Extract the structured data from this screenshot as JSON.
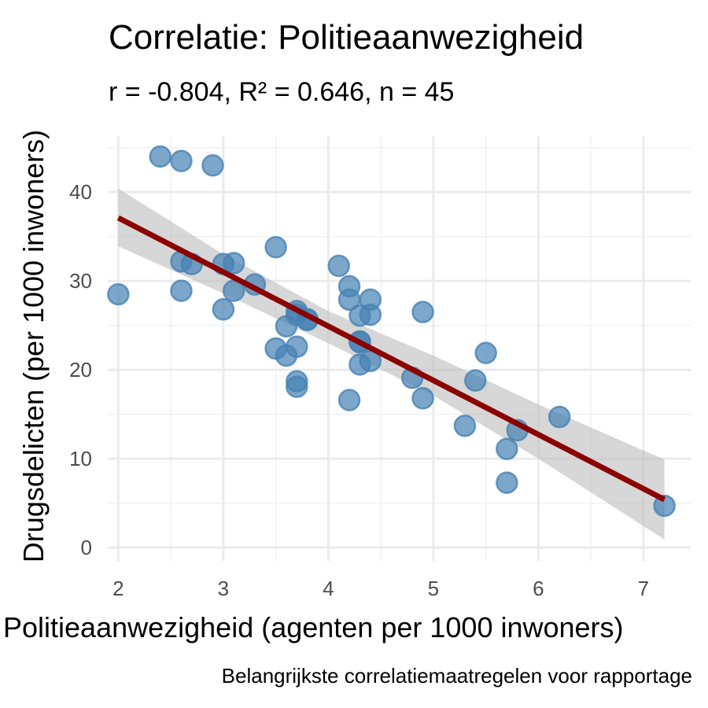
{
  "chart_data": {
    "type": "scatter",
    "title": "Correlatie: Politieaanwezigheid",
    "subtitle": "r = -0.804, R² = 0.646, n = 45",
    "xlabel": "Politieaanwezigheid (agenten per 1000 inwoners)",
    "ylabel": "Drugsdelicten (per 1000 inwoners)",
    "caption": "Belangrijkste correlatiemaatregelen voor rapportage",
    "xlim": [
      1.9,
      7.45
    ],
    "ylim": [
      -1.5,
      46.3
    ],
    "xticks": [
      2,
      3,
      4,
      5,
      6,
      7
    ],
    "yticks": [
      0,
      10,
      20,
      30,
      40
    ],
    "grid": true,
    "point_color": "#4682B4",
    "line_color": "#8B0000",
    "ribbon_color": "#bdbdbd",
    "points": [
      {
        "x": 2.0,
        "y": 28.5
      },
      {
        "x": 2.4,
        "y": 44.0
      },
      {
        "x": 2.6,
        "y": 43.5
      },
      {
        "x": 2.9,
        "y": 43.0
      },
      {
        "x": 2.6,
        "y": 32.2
      },
      {
        "x": 2.7,
        "y": 31.9
      },
      {
        "x": 2.6,
        "y": 28.9
      },
      {
        "x": 3.0,
        "y": 31.9
      },
      {
        "x": 3.1,
        "y": 32.0
      },
      {
        "x": 3.1,
        "y": 28.9
      },
      {
        "x": 3.0,
        "y": 26.8
      },
      {
        "x": 3.3,
        "y": 29.6
      },
      {
        "x": 3.5,
        "y": 33.8
      },
      {
        "x": 3.6,
        "y": 24.9
      },
      {
        "x": 3.7,
        "y": 26.6
      },
      {
        "x": 3.7,
        "y": 26.2
      },
      {
        "x": 3.8,
        "y": 25.7
      },
      {
        "x": 3.5,
        "y": 22.4
      },
      {
        "x": 3.6,
        "y": 21.6
      },
      {
        "x": 3.7,
        "y": 22.6
      },
      {
        "x": 3.7,
        "y": 18.7
      },
      {
        "x": 3.7,
        "y": 18.1
      },
      {
        "x": 4.1,
        "y": 31.7
      },
      {
        "x": 4.2,
        "y": 29.4
      },
      {
        "x": 4.2,
        "y": 27.9
      },
      {
        "x": 4.4,
        "y": 27.9
      },
      {
        "x": 4.3,
        "y": 26.1
      },
      {
        "x": 4.4,
        "y": 26.2
      },
      {
        "x": 4.3,
        "y": 23.2
      },
      {
        "x": 4.3,
        "y": 23.1
      },
      {
        "x": 4.3,
        "y": 20.6
      },
      {
        "x": 4.4,
        "y": 21.0
      },
      {
        "x": 4.2,
        "y": 16.6
      },
      {
        "x": 4.8,
        "y": 19.1
      },
      {
        "x": 4.9,
        "y": 16.8
      },
      {
        "x": 4.9,
        "y": 26.5
      },
      {
        "x": 5.3,
        "y": 13.7
      },
      {
        "x": 5.4,
        "y": 18.8
      },
      {
        "x": 5.5,
        "y": 21.9
      },
      {
        "x": 5.7,
        "y": 11.1
      },
      {
        "x": 5.7,
        "y": 7.3
      },
      {
        "x": 5.8,
        "y": 13.2
      },
      {
        "x": 6.2,
        "y": 14.7
      },
      {
        "x": 7.2,
        "y": 4.7
      },
      {
        "x": 3.8,
        "y": 25.6
      }
    ],
    "fit": {
      "x": [
        2.0,
        7.2
      ],
      "y": [
        37.1,
        5.4
      ]
    },
    "ribbon": {
      "x": [
        2.0,
        3.0,
        4.0,
        5.0,
        6.0,
        7.2
      ],
      "upper": [
        40.4,
        33.0,
        26.6,
        21.6,
        16.1,
        9.9
      ],
      "lower": [
        33.9,
        28.6,
        23.0,
        17.1,
        10.0,
        0.9
      ]
    }
  }
}
